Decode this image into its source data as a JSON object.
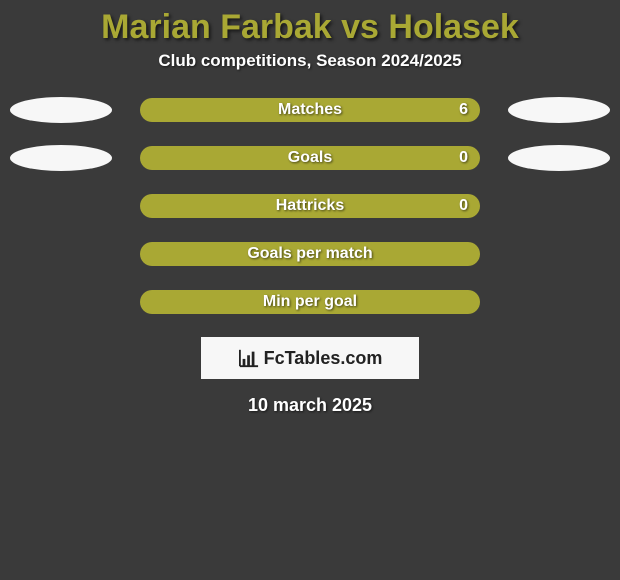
{
  "title": "Marian Farbak vs Holasek",
  "subtitle": "Club competitions, Season 2024/2025",
  "colors": {
    "background": "#3a3a3a",
    "accent": "#a9a834",
    "text_light": "#ffffff",
    "ellipse_fill": "#f7f7f7",
    "logo_bg": "#f7f7f7",
    "logo_text": "#222222"
  },
  "font": {
    "title_size": 34,
    "subtitle_size": 17,
    "bar_label_size": 16,
    "date_size": 18,
    "logo_size": 18
  },
  "bars": [
    {
      "label": "Matches",
      "value": "6",
      "show_ellipses": true
    },
    {
      "label": "Goals",
      "value": "0",
      "show_ellipses": true
    },
    {
      "label": "Hattricks",
      "value": "0",
      "show_ellipses": false
    },
    {
      "label": "Goals per match",
      "value": "",
      "show_ellipses": false
    },
    {
      "label": "Min per goal",
      "value": "",
      "show_ellipses": false
    }
  ],
  "logo": {
    "text": "FcTables.com",
    "icon": "bar-chart-icon"
  },
  "date": "10 march 2025"
}
